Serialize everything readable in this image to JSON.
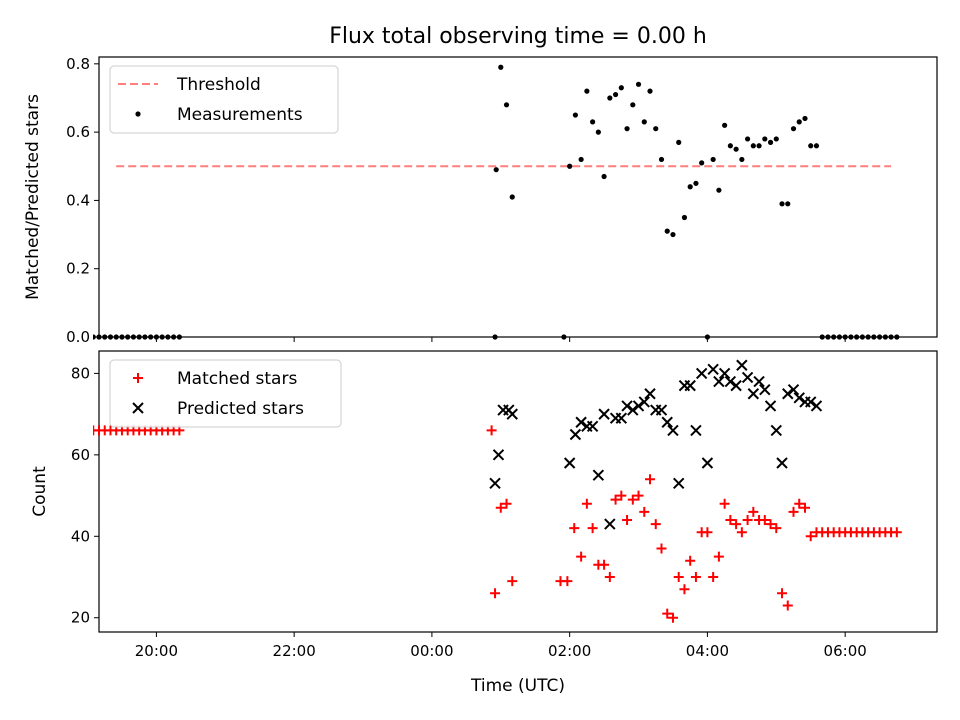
{
  "colors": {
    "threshold": "#ff7f7f",
    "measurements": "#000000",
    "matched": "#ff0000",
    "predicted": "#000000"
  },
  "chart_data": [
    {
      "type": "scatter",
      "title": "Flux total observing time = 0.00 h",
      "xlabel": "",
      "ylabel": "Matched/Predicted stars",
      "xlim": [
        "19:10",
        "07:20"
      ],
      "ylim": [
        0,
        0.82
      ],
      "x_tick_labels": [
        "20:00",
        "22:00",
        "00:00",
        "02:00",
        "04:00",
        "06:00"
      ],
      "y_ticks": [
        0.0,
        0.2,
        0.4,
        0.6,
        0.8
      ],
      "y_tick_labels": [
        "0.0",
        "0.2",
        "0.4",
        "0.6",
        "0.8"
      ],
      "grid": false,
      "legend": "top-left",
      "series": [
        {
          "name": "Threshold",
          "style": "dashed-line",
          "x": [
            "19:25",
            "06:40"
          ],
          "y": [
            0.5,
            0.5
          ]
        },
        {
          "name": "Measurements",
          "style": "dot",
          "x": [
            "19:05",
            "19:10",
            "19:15",
            "19:20",
            "19:25",
            "19:30",
            "19:35",
            "19:40",
            "19:45",
            "19:50",
            "19:55",
            "20:00",
            "20:05",
            "20:10",
            "20:15",
            "20:20",
            "00:55",
            "00:56",
            "01:00",
            "01:05",
            "01:10",
            "01:55",
            "02:00",
            "02:05",
            "02:10",
            "02:15",
            "02:20",
            "02:25",
            "02:30",
            "02:35",
            "02:40",
            "02:45",
            "02:50",
            "02:55",
            "03:00",
            "03:05",
            "03:10",
            "03:15",
            "03:20",
            "03:25",
            "03:30",
            "03:35",
            "03:40",
            "03:45",
            "03:50",
            "03:55",
            "04:00",
            "04:05",
            "04:10",
            "04:15",
            "04:20",
            "04:25",
            "04:30",
            "04:35",
            "04:40",
            "04:45",
            "04:50",
            "04:55",
            "05:00",
            "05:05",
            "05:10",
            "05:15",
            "05:20",
            "05:25",
            "05:30",
            "05:35",
            "05:40",
            "05:45",
            "05:50",
            "05:55",
            "06:00",
            "06:05",
            "06:10",
            "06:15",
            "06:20",
            "06:25",
            "06:30",
            "06:35",
            "06:40",
            "06:45"
          ],
          "y": [
            0,
            0,
            0,
            0,
            0,
            0,
            0,
            0,
            0,
            0,
            0,
            0,
            0,
            0,
            0,
            0,
            0.0,
            0.49,
            0.79,
            0.68,
            0.41,
            0.0,
            0.5,
            0.65,
            0.52,
            0.72,
            0.63,
            0.6,
            0.47,
            0.7,
            0.71,
            0.73,
            0.61,
            0.68,
            0.74,
            0.63,
            0.72,
            0.61,
            0.52,
            0.31,
            0.3,
            0.57,
            0.35,
            0.44,
            0.45,
            0.51,
            0.0,
            0.52,
            0.43,
            0.62,
            0.56,
            0.55,
            0.52,
            0.58,
            0.56,
            0.56,
            0.58,
            0.57,
            0.58,
            0.39,
            0.39,
            0.61,
            0.63,
            0.64,
            0.56,
            0.56,
            0,
            0,
            0,
            0,
            0,
            0,
            0,
            0,
            0,
            0,
            0,
            0,
            0,
            0
          ]
        }
      ]
    },
    {
      "type": "scatter",
      "title": "",
      "xlabel": "Time (UTC)",
      "ylabel": "Count",
      "xlim": [
        "19:10",
        "07:20"
      ],
      "ylim": [
        16.5,
        85.5
      ],
      "x_tick_labels": [
        "20:00",
        "22:00",
        "00:00",
        "02:00",
        "04:00",
        "06:00"
      ],
      "y_ticks": [
        20,
        40,
        60,
        80
      ],
      "y_tick_labels": [
        "20",
        "40",
        "60",
        "80"
      ],
      "grid": false,
      "legend": "top-left",
      "series": [
        {
          "name": "Matched stars",
          "style": "plus",
          "x": [
            "19:05",
            "19:10",
            "19:15",
            "19:20",
            "19:25",
            "19:30",
            "19:35",
            "19:40",
            "19:45",
            "19:50",
            "19:55",
            "20:00",
            "20:05",
            "20:10",
            "20:15",
            "20:20",
            "00:52",
            "00:55",
            "01:00",
            "01:05",
            "01:10",
            "01:52",
            "01:58",
            "02:04",
            "02:10",
            "02:15",
            "02:20",
            "02:25",
            "02:30",
            "02:35",
            "02:40",
            "02:45",
            "02:50",
            "02:55",
            "03:00",
            "03:05",
            "03:10",
            "03:15",
            "03:20",
            "03:25",
            "03:30",
            "03:35",
            "03:40",
            "03:45",
            "03:50",
            "03:55",
            "04:00",
            "04:05",
            "04:10",
            "04:15",
            "04:20",
            "04:25",
            "04:30",
            "04:35",
            "04:40",
            "04:45",
            "04:50",
            "04:55",
            "05:00",
            "05:05",
            "05:10",
            "05:15",
            "05:20",
            "05:25",
            "05:30",
            "05:35",
            "05:40",
            "05:45",
            "05:50",
            "05:55",
            "06:00",
            "06:05",
            "06:10",
            "06:15",
            "06:20",
            "06:25",
            "06:30",
            "06:35",
            "06:40",
            "06:45"
          ],
          "y": [
            66,
            66,
            66,
            66,
            66,
            66,
            66,
            66,
            66,
            66,
            66,
            66,
            66,
            66,
            66,
            66,
            66,
            26,
            47,
            48,
            29,
            29,
            29,
            42,
            35,
            48,
            42,
            33,
            33,
            30,
            49,
            50,
            44,
            49,
            50,
            46,
            54,
            43,
            37,
            21,
            20,
            30,
            27,
            34,
            30,
            41,
            41,
            30,
            35,
            48,
            44,
            43,
            41,
            44,
            46,
            44,
            44,
            43,
            42,
            26,
            23,
            46,
            48,
            47,
            40,
            41,
            41,
            41,
            41,
            41,
            41,
            41,
            41,
            41,
            41,
            41,
            41,
            41,
            41,
            41
          ]
        },
        {
          "name": "Predicted stars",
          "style": "x",
          "x": [
            "00:55",
            "00:58",
            "01:02",
            "01:07",
            "01:10",
            "02:00",
            "02:05",
            "02:10",
            "02:15",
            "02:20",
            "02:25",
            "02:30",
            "02:35",
            "02:40",
            "02:45",
            "02:50",
            "02:55",
            "03:00",
            "03:05",
            "03:10",
            "03:15",
            "03:20",
            "03:25",
            "03:30",
            "03:35",
            "03:40",
            "03:45",
            "03:50",
            "03:55",
            "04:00",
            "04:05",
            "04:10",
            "04:15",
            "04:20",
            "04:25",
            "04:30",
            "04:35",
            "04:40",
            "04:45",
            "04:50",
            "04:55",
            "05:00",
            "05:05",
            "05:10",
            "05:15",
            "05:20",
            "05:25",
            "05:30",
            "05:35"
          ],
          "y": [
            53,
            60,
            71,
            71,
            70,
            58,
            65,
            68,
            67,
            67,
            55,
            70,
            43,
            69,
            69,
            72,
            71,
            72,
            73,
            75,
            71,
            71,
            68,
            66,
            53,
            77,
            77,
            66,
            80,
            58,
            81,
            78,
            80,
            78,
            77,
            82,
            79,
            75,
            78,
            76,
            72,
            66,
            58,
            75,
            76,
            74,
            73,
            73,
            72
          ]
        }
      ]
    }
  ]
}
